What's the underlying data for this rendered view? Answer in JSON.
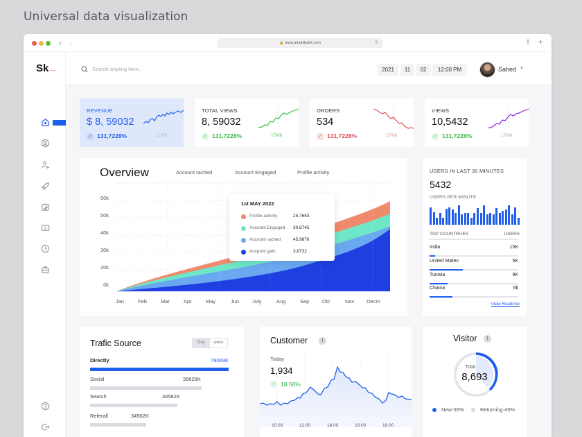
{
  "page_heading": "Universal data visualization",
  "browser": {
    "url": "www.alrajhibank.com",
    "back_icon": "chevron-left-icon",
    "forward_icon": "chevron-right-icon"
  },
  "app": {
    "logo": "Sk",
    "search": {
      "placeholder": "Search anyting here.."
    },
    "date": {
      "year": "2021",
      "month": "11",
      "day": "02",
      "time": "12:00 PM"
    },
    "user": {
      "name": "Sahed"
    }
  },
  "sidebar": {
    "items": [
      {
        "name": "dashboard",
        "icon": "home-chart-icon",
        "active": true
      },
      {
        "name": "profile",
        "icon": "user-circle-icon"
      },
      {
        "name": "users",
        "icon": "users-icon"
      },
      {
        "name": "launch",
        "icon": "rocket-icon"
      },
      {
        "name": "tasks",
        "icon": "calendar-edit-icon"
      },
      {
        "name": "billing",
        "icon": "dollar-icon"
      },
      {
        "name": "history",
        "icon": "clock-icon"
      },
      {
        "name": "portfolio",
        "icon": "briefcase-icon"
      }
    ],
    "bottom": [
      {
        "name": "help",
        "icon": "help-icon"
      },
      {
        "name": "logout",
        "icon": "logout-icon"
      }
    ]
  },
  "kpis": [
    {
      "label": "REVENUE",
      "value": "$ 8, 59032",
      "change": "131,7228%",
      "date": "17/06",
      "trend": "up",
      "color": "#1e5eea"
    },
    {
      "label": "TOTAL VIEWS",
      "value": "8, 59032",
      "change": "131,7228%",
      "date": "17/06",
      "trend": "up",
      "color": "#2fbf3c"
    },
    {
      "label": "ORDERS",
      "value": "534",
      "change": "131,7228%",
      "date": "17/06",
      "trend": "down",
      "color": "#e04b4b"
    },
    {
      "label": "VIEWS",
      "value": "10,5432",
      "change": "131,7228%",
      "date": "17/06",
      "trend": "up",
      "color": "#8b1fd6"
    }
  ],
  "overview": {
    "title": "Overview",
    "tabs": [
      "Account rached",
      "Account Engaged",
      "Profile activity"
    ],
    "yticks": [
      "60k",
      "50k",
      "40k",
      "30k",
      "20k",
      "0k"
    ],
    "xticks": [
      "Jan",
      "Feb",
      "Mar",
      "Apr",
      "May",
      "Jun",
      "July",
      "Aug",
      "Sep",
      "Otc",
      "Nov",
      "Decm"
    ],
    "tooltip": {
      "title": "1st MAY 2022",
      "rows": [
        {
          "label": "Profile activity",
          "value": "25,7653",
          "color": "#f08a6c"
        },
        {
          "label": "Account Engaged",
          "value": "30,8745",
          "color": "#6ee7c8"
        },
        {
          "label": "Account rached",
          "value": "45,9876",
          "color": "#6aa8f0"
        },
        {
          "label": "Accpunt gain",
          "value": "3,8732",
          "color": "#1f3fe0"
        }
      ]
    }
  },
  "chart_data": {
    "type": "area",
    "title": "Overview",
    "categories": [
      "Jan",
      "Feb",
      "Mar",
      "Apr",
      "May",
      "Jun",
      "July",
      "Aug",
      "Sep",
      "Otc",
      "Nov",
      "Decm"
    ],
    "ylabel": "",
    "ylim": [
      0,
      65000
    ],
    "yticks": [
      "0k",
      "20k",
      "30k",
      "40k",
      "50k",
      "60k"
    ],
    "stacked": true,
    "series": [
      {
        "name": "Accpunt gain",
        "color": "#1f3fe0",
        "values": [
          0,
          2000,
          4000,
          6000,
          8000,
          11000,
          14000,
          18000,
          22000,
          27000,
          33000,
          40000
        ]
      },
      {
        "name": "Account rached",
        "color": "#6aa8f0",
        "values": [
          0,
          1500,
          3000,
          4000,
          5000,
          6000,
          7000,
          8000,
          9000,
          10000,
          11000,
          12000
        ]
      },
      {
        "name": "Account Engaged",
        "color": "#6ee7c8",
        "values": [
          0,
          1200,
          2400,
          3500,
          4500,
          5000,
          5500,
          6000,
          6000,
          6000,
          6000,
          6000
        ]
      },
      {
        "name": "Profile activity",
        "color": "#f08a6c",
        "values": [
          0,
          300,
          600,
          1000,
          1500,
          2000,
          3000,
          4000,
          5000,
          6000,
          6000,
          6000
        ]
      }
    ],
    "tooltip": {
      "date": "1st MAY 2022",
      "Profile activity": "25,7653",
      "Account Engaged": "30,8745",
      "Account rached": "45,9876",
      "Accpunt gain": "3,8732"
    },
    "grid": true
  },
  "realtime": {
    "title": "USERS IN LAST 30 MINUTES",
    "value": "5432",
    "subtitle": "USERS PER MINUTE",
    "bars": [
      20,
      14,
      8,
      13,
      8,
      18,
      20,
      17,
      13,
      22,
      12,
      13,
      13,
      8,
      13,
      19,
      13,
      22,
      12,
      13,
      12,
      19,
      13,
      16,
      17,
      22,
      12,
      20,
      8
    ],
    "table_headers": [
      "TOP COUNTRUES",
      "USERS"
    ],
    "countries": [
      {
        "name": "India",
        "users": "15K",
        "bar": 8
      },
      {
        "name": "United States",
        "users": "5K",
        "bar": 38
      },
      {
        "name": "Tunisia",
        "users": "9K",
        "bar": 21
      },
      {
        "name": "Chaina",
        "users": "6k",
        "bar": 26
      }
    ],
    "link": "View Realtime"
  },
  "traffic": {
    "title": "Trafic Source",
    "toggle": [
      "Day",
      "week"
    ],
    "rows": [
      {
        "label": "Directly",
        "value": "79069K",
        "bar": 100,
        "highlight": true
      },
      {
        "label": "Social",
        "value": "35628K",
        "bar": 81
      },
      {
        "label": "Search",
        "value": "34562K",
        "bar": 63
      },
      {
        "label": "Referall",
        "value": "34562K",
        "bar": 41
      }
    ]
  },
  "customer": {
    "title": "Customer",
    "today_label": "Today",
    "value": "1,934",
    "change": "18.56%",
    "xticks": [
      "10:00",
      "12:00",
      "14:00",
      "16:00",
      "18:00"
    ]
  },
  "visitor": {
    "title": "Visitor",
    "total_label": "Total",
    "total": "8,693",
    "legend": [
      "New-55%",
      "Returning-45%"
    ]
  }
}
